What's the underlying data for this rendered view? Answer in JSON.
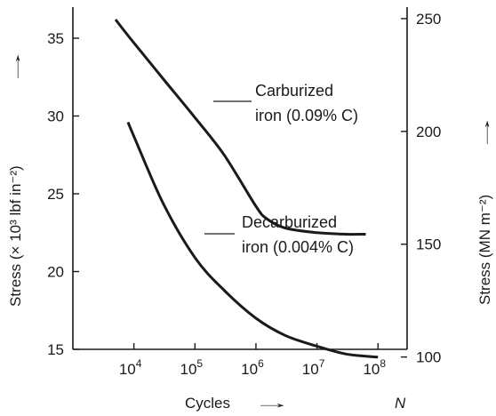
{
  "chart_data": {
    "type": "line",
    "xscale": "log",
    "xlim": [
      1000,
      300000000
    ],
    "ylim": [
      15,
      37
    ],
    "y2lim": [
      103.4,
      255.1
    ],
    "xlabel": "Cycles",
    "xlabel_arrow": "→",
    "xlabel_symbol": "N",
    "ylabel": "Stress (× 10³ lbf in⁻²)",
    "ylabel_arrow": "→",
    "y2label": "Stress (MN m⁻²)",
    "y2label_arrow": "→",
    "x_ticks": [
      {
        "value": 10000,
        "base": "10",
        "exp": "4"
      },
      {
        "value": 100000,
        "base": "10",
        "exp": "5"
      },
      {
        "value": 1000000,
        "base": "10",
        "exp": "6"
      },
      {
        "value": 10000000,
        "base": "10",
        "exp": "7"
      },
      {
        "value": 100000000,
        "base": "10",
        "exp": "8"
      }
    ],
    "y_ticks": [
      15,
      20,
      25,
      30,
      35
    ],
    "y2_ticks": [
      100,
      150,
      200,
      250
    ],
    "grid": false,
    "series": [
      {
        "name": "Carburized iron (0.09% C)",
        "label_lines": [
          "Carburized",
          "iron (0.09% C)"
        ],
        "x": [
          5000,
          10000,
          30000,
          100000,
          300000,
          1000000,
          1500000,
          3000000,
          10000000,
          30000000,
          63000000
        ],
        "y": [
          36.2,
          34.7,
          32.4,
          29.9,
          27.5,
          24.2,
          23.4,
          22.8,
          22.5,
          22.4,
          22.4
        ]
      },
      {
        "name": "Decarburized iron (0.004% C)",
        "label_lines": [
          "Decarburized",
          "iron (0.004% C)"
        ],
        "x": [
          8000,
          10000,
          30000,
          100000,
          300000,
          1000000,
          3000000,
          10000000,
          30000000,
          100000000
        ],
        "y": [
          29.6,
          28.7,
          24.4,
          20.9,
          18.8,
          17.0,
          15.9,
          15.2,
          14.7,
          14.5
        ]
      }
    ]
  }
}
